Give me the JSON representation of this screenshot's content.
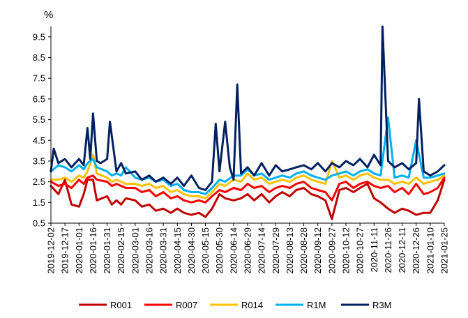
{
  "chart_data": {
    "type": "line",
    "unit_label": "%",
    "ylim": [
      0.5,
      10.0
    ],
    "yticks": [
      0.5,
      1.5,
      2.5,
      3.5,
      4.5,
      5.5,
      6.5,
      7.5,
      8.5,
      9.5
    ],
    "xlim": [
      "2019-12-02",
      "2021-01-25"
    ],
    "xticks": [
      "2019-12-02",
      "2019-12-17",
      "2020-01-01",
      "2020-01-16",
      "2020-01-31",
      "2020-02-15",
      "2020-03-01",
      "2020-03-16",
      "2020-03-31",
      "2020-04-15",
      "2020-04-30",
      "2020-05-15",
      "2020-05-30",
      "2020-06-14",
      "2020-06-29",
      "2020-07-14",
      "2020-07-29",
      "2020-08-13",
      "2020-08-28",
      "2020-09-12",
      "2020-09-27",
      "2020-10-12",
      "2020-10-27",
      "2020-11-11",
      "2020-11-26",
      "2020-12-11",
      "2020-12-26",
      "2021-01-10",
      "2021-01-25"
    ],
    "grid": false,
    "legend_position": "bottom",
    "series": [
      {
        "name": "R001",
        "color": "#C00000",
        "x": [
          "2019-12-02",
          "2019-12-10",
          "2019-12-17",
          "2019-12-24",
          "2020-01-01",
          "2020-01-06",
          "2020-01-10",
          "2020-01-16",
          "2020-01-20",
          "2020-01-31",
          "2020-02-05",
          "2020-02-10",
          "2020-02-15",
          "2020-02-20",
          "2020-03-01",
          "2020-03-08",
          "2020-03-16",
          "2020-03-23",
          "2020-03-31",
          "2020-04-08",
          "2020-04-15",
          "2020-04-22",
          "2020-04-30",
          "2020-05-08",
          "2020-05-15",
          "2020-05-22",
          "2020-05-30",
          "2020-06-05",
          "2020-06-14",
          "2020-06-22",
          "2020-06-29",
          "2020-07-06",
          "2020-07-14",
          "2020-07-22",
          "2020-07-29",
          "2020-08-05",
          "2020-08-13",
          "2020-08-20",
          "2020-08-28",
          "2020-09-05",
          "2020-09-12",
          "2020-09-20",
          "2020-09-27",
          "2020-10-05",
          "2020-10-12",
          "2020-10-20",
          "2020-10-27",
          "2020-11-04",
          "2020-11-11",
          "2020-11-18",
          "2020-11-26",
          "2020-12-03",
          "2020-12-11",
          "2020-12-18",
          "2020-12-26",
          "2021-01-03",
          "2021-01-10",
          "2021-01-18",
          "2021-01-25"
        ],
        "values": [
          2.3,
          1.9,
          2.6,
          1.4,
          1.3,
          1.9,
          2.6,
          2.6,
          1.6,
          1.8,
          1.4,
          1.6,
          1.4,
          1.7,
          1.6,
          1.3,
          1.4,
          1.1,
          1.2,
          1.0,
          1.2,
          1.0,
          0.9,
          1.0,
          0.8,
          1.2,
          1.9,
          1.7,
          1.6,
          1.7,
          1.9,
          1.6,
          1.9,
          1.5,
          1.8,
          2.0,
          1.8,
          2.1,
          2.2,
          1.9,
          1.8,
          1.6,
          0.7,
          2.1,
          2.2,
          2.0,
          2.2,
          2.4,
          1.7,
          1.5,
          1.2,
          1.0,
          1.2,
          1.1,
          0.9,
          1.0,
          1.0,
          1.6,
          2.6
        ]
      },
      {
        "name": "R007",
        "color": "#FF0000",
        "x": [
          "2019-12-02",
          "2019-12-10",
          "2019-12-17",
          "2019-12-24",
          "2020-01-01",
          "2020-01-06",
          "2020-01-10",
          "2020-01-16",
          "2020-01-20",
          "2020-01-31",
          "2020-02-05",
          "2020-02-10",
          "2020-02-15",
          "2020-02-20",
          "2020-03-01",
          "2020-03-08",
          "2020-03-16",
          "2020-03-23",
          "2020-03-31",
          "2020-04-08",
          "2020-04-15",
          "2020-04-22",
          "2020-04-30",
          "2020-05-08",
          "2020-05-15",
          "2020-05-22",
          "2020-05-30",
          "2020-06-05",
          "2020-06-14",
          "2020-06-22",
          "2020-06-29",
          "2020-07-06",
          "2020-07-14",
          "2020-07-22",
          "2020-07-29",
          "2020-08-05",
          "2020-08-13",
          "2020-08-20",
          "2020-08-28",
          "2020-09-05",
          "2020-09-12",
          "2020-09-20",
          "2020-09-27",
          "2020-10-05",
          "2020-10-12",
          "2020-10-20",
          "2020-10-27",
          "2020-11-04",
          "2020-11-11",
          "2020-11-18",
          "2020-11-26",
          "2020-12-03",
          "2020-12-11",
          "2020-12-18",
          "2020-12-26",
          "2021-01-03",
          "2021-01-10",
          "2021-01-18",
          "2021-01-25"
        ],
        "values": [
          2.5,
          2.3,
          2.4,
          2.2,
          2.6,
          2.4,
          2.7,
          2.8,
          2.6,
          2.5,
          2.3,
          2.4,
          2.3,
          2.2,
          2.2,
          2.0,
          2.1,
          1.8,
          2.0,
          1.7,
          1.8,
          1.6,
          1.5,
          1.6,
          1.5,
          1.8,
          2.1,
          2.0,
          2.2,
          2.1,
          2.4,
          2.2,
          2.3,
          2.0,
          2.2,
          2.3,
          2.2,
          2.4,
          2.5,
          2.2,
          2.1,
          2.0,
          1.6,
          2.4,
          2.5,
          2.2,
          2.4,
          2.5,
          2.3,
          2.2,
          2.3,
          2.0,
          2.2,
          1.9,
          2.4,
          1.9,
          2.0,
          2.2,
          2.7
        ]
      },
      {
        "name": "R014",
        "color": "#FFC000",
        "x": [
          "2019-12-02",
          "2019-12-10",
          "2019-12-17",
          "2019-12-24",
          "2020-01-01",
          "2020-01-06",
          "2020-01-10",
          "2020-01-16",
          "2020-01-20",
          "2020-01-31",
          "2020-02-05",
          "2020-02-10",
          "2020-02-15",
          "2020-02-20",
          "2020-03-01",
          "2020-03-08",
          "2020-03-16",
          "2020-03-23",
          "2020-03-31",
          "2020-04-08",
          "2020-04-15",
          "2020-04-22",
          "2020-04-30",
          "2020-05-08",
          "2020-05-15",
          "2020-05-22",
          "2020-05-30",
          "2020-06-05",
          "2020-06-14",
          "2020-06-22",
          "2020-06-29",
          "2020-07-06",
          "2020-07-14",
          "2020-07-22",
          "2020-07-29",
          "2020-08-05",
          "2020-08-13",
          "2020-08-20",
          "2020-08-28",
          "2020-09-05",
          "2020-09-12",
          "2020-09-20",
          "2020-09-27",
          "2020-10-05",
          "2020-10-12",
          "2020-10-20",
          "2020-10-27",
          "2020-11-04",
          "2020-11-11",
          "2020-11-18",
          "2020-11-26",
          "2020-12-03",
          "2020-12-11",
          "2020-12-18",
          "2020-12-26",
          "2021-01-03",
          "2021-01-10",
          "2021-01-18",
          "2021-01-25"
        ],
        "values": [
          2.6,
          2.6,
          2.7,
          2.5,
          2.8,
          2.7,
          3.0,
          3.8,
          2.9,
          2.7,
          2.5,
          2.6,
          2.5,
          2.4,
          2.4,
          2.3,
          2.4,
          2.2,
          2.3,
          2.0,
          2.1,
          1.9,
          1.8,
          1.8,
          1.7,
          2.0,
          2.4,
          2.3,
          2.6,
          2.5,
          2.9,
          2.6,
          2.7,
          2.4,
          2.5,
          2.6,
          2.5,
          2.7,
          2.8,
          2.6,
          2.5,
          2.4,
          3.5,
          2.7,
          2.8,
          2.6,
          2.8,
          2.9,
          2.7,
          2.6,
          2.6,
          2.4,
          2.5,
          2.4,
          2.7,
          2.4,
          2.5,
          2.6,
          2.8
        ]
      },
      {
        "name": "R1M",
        "color": "#00B0F0",
        "x": [
          "2019-12-02",
          "2019-12-10",
          "2019-12-17",
          "2019-12-24",
          "2020-01-01",
          "2020-01-06",
          "2020-01-10",
          "2020-01-16",
          "2020-01-20",
          "2020-01-31",
          "2020-02-05",
          "2020-02-10",
          "2020-02-15",
          "2020-02-20",
          "2020-03-01",
          "2020-03-08",
          "2020-03-16",
          "2020-03-23",
          "2020-03-31",
          "2020-04-08",
          "2020-04-15",
          "2020-04-22",
          "2020-04-30",
          "2020-05-08",
          "2020-05-15",
          "2020-05-22",
          "2020-05-30",
          "2020-06-05",
          "2020-06-14",
          "2020-06-22",
          "2020-06-29",
          "2020-07-06",
          "2020-07-14",
          "2020-07-22",
          "2020-07-29",
          "2020-08-05",
          "2020-08-13",
          "2020-08-20",
          "2020-08-28",
          "2020-09-05",
          "2020-09-12",
          "2020-09-20",
          "2020-09-27",
          "2020-10-05",
          "2020-10-12",
          "2020-10-20",
          "2020-10-27",
          "2020-11-04",
          "2020-11-11",
          "2020-11-18",
          "2020-11-26",
          "2020-12-03",
          "2020-12-11",
          "2020-12-18",
          "2020-12-26",
          "2021-01-03",
          "2021-01-10",
          "2021-01-18",
          "2021-01-25"
        ],
        "values": [
          3.0,
          3.3,
          3.2,
          3.0,
          3.3,
          3.1,
          3.4,
          3.6,
          3.2,
          3.0,
          2.8,
          2.9,
          2.8,
          3.2,
          2.7,
          2.6,
          2.7,
          2.5,
          2.6,
          2.3,
          2.4,
          2.1,
          2.0,
          2.0,
          1.9,
          2.2,
          2.6,
          2.5,
          2.8,
          2.8,
          3.1,
          2.8,
          2.9,
          2.6,
          2.7,
          2.8,
          2.7,
          2.9,
          3.0,
          2.8,
          2.7,
          2.6,
          2.8,
          2.9,
          3.0,
          2.8,
          3.0,
          3.1,
          2.9,
          2.8,
          5.6,
          2.7,
          2.8,
          2.7,
          4.5,
          2.7,
          2.7,
          2.8,
          2.9
        ]
      },
      {
        "name": "R3M",
        "color": "#002060",
        "x": [
          "2019-12-02",
          "2019-12-05",
          "2019-12-10",
          "2019-12-17",
          "2019-12-24",
          "2020-01-01",
          "2020-01-06",
          "2020-01-10",
          "2020-01-13",
          "2020-01-16",
          "2020-01-20",
          "2020-01-24",
          "2020-01-31",
          "2020-02-03",
          "2020-02-10",
          "2020-02-15",
          "2020-02-20",
          "2020-03-01",
          "2020-03-08",
          "2020-03-16",
          "2020-03-23",
          "2020-03-31",
          "2020-04-08",
          "2020-04-15",
          "2020-04-22",
          "2020-04-30",
          "2020-05-08",
          "2020-05-15",
          "2020-05-22",
          "2020-05-26",
          "2020-05-30",
          "2020-06-05",
          "2020-06-10",
          "2020-06-14",
          "2020-06-18",
          "2020-06-22",
          "2020-06-29",
          "2020-07-06",
          "2020-07-14",
          "2020-07-22",
          "2020-07-29",
          "2020-08-05",
          "2020-08-13",
          "2020-08-20",
          "2020-08-28",
          "2020-09-05",
          "2020-09-12",
          "2020-09-20",
          "2020-09-27",
          "2020-10-05",
          "2020-10-12",
          "2020-10-20",
          "2020-10-27",
          "2020-11-04",
          "2020-11-11",
          "2020-11-18",
          "2020-11-20",
          "2020-11-26",
          "2020-12-03",
          "2020-12-11",
          "2020-12-18",
          "2020-12-26",
          "2020-12-29",
          "2021-01-03",
          "2021-01-10",
          "2021-01-18",
          "2021-01-25"
        ],
        "values": [
          3.0,
          4.1,
          3.4,
          3.6,
          3.2,
          3.6,
          3.3,
          5.1,
          3.6,
          5.8,
          3.5,
          3.4,
          3.6,
          5.4,
          3.0,
          3.4,
          2.9,
          3.0,
          2.6,
          2.8,
          2.5,
          2.7,
          2.4,
          2.7,
          2.3,
          2.8,
          2.2,
          2.1,
          2.5,
          5.3,
          3.0,
          5.4,
          3.2,
          2.6,
          7.2,
          2.9,
          3.2,
          2.8,
          3.4,
          2.8,
          3.3,
          3.0,
          3.1,
          3.2,
          3.3,
          3.1,
          3.4,
          3.0,
          3.4,
          3.2,
          3.5,
          3.3,
          3.6,
          3.2,
          3.8,
          3.3,
          10.0,
          3.5,
          3.2,
          3.4,
          3.1,
          3.4,
          6.5,
          3.0,
          2.8,
          3.0,
          3.3
        ]
      }
    ]
  }
}
